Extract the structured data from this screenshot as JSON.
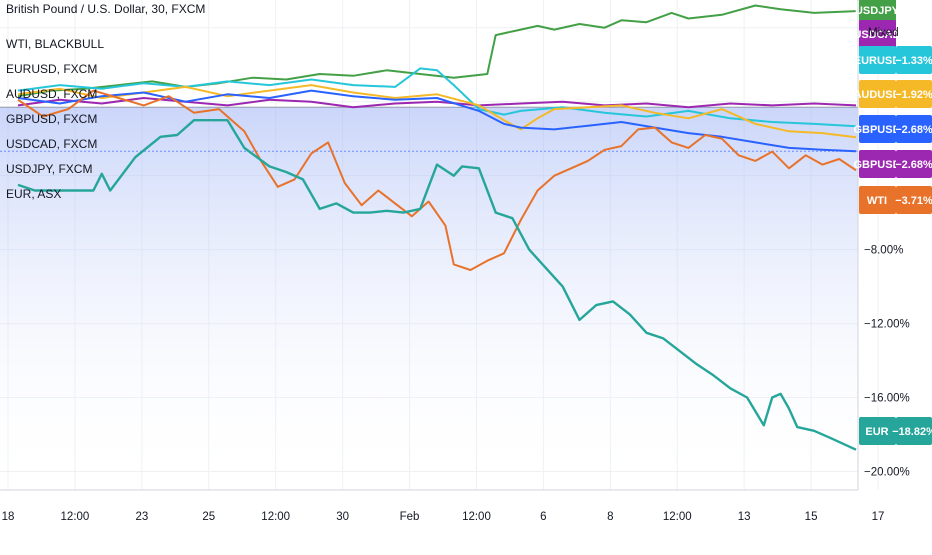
{
  "header": {
    "main_symbol_label": "British Pound / U.S. Dollar, 30, FXCM"
  },
  "legend_rows": [
    "WTI, BLACKBULL",
    "EURUSD, FXCM",
    "AUDUSD, FXCM",
    "GBPUSD, FXCM",
    "USDCAD, FXCM",
    "USDJPY, FXCM",
    "EUR, ASX"
  ],
  "scale_mode_label": "Mixed",
  "colors": {
    "wti": "#e8722a",
    "eurusd": "#26c6da",
    "audusd": "#f5b928",
    "gbpusd": "#2962ff",
    "usdcad": "#9c27b0",
    "usdjpy": "#43a047",
    "eur": "#26a69a",
    "area_top": "#9fb4f5",
    "area_bottom": "#ffffff",
    "grid": "#eef0f3",
    "axis_line": "#d1d4dc"
  },
  "badges": [
    {
      "name": "USDJPY",
      "value": "",
      "color": "#43a047"
    },
    {
      "name": "USDCAD",
      "value": "",
      "color": "#9c27b0"
    },
    {
      "name": "EURUSD",
      "value": "−1.33%",
      "color": "#26c6da"
    },
    {
      "name": "AUDUSD",
      "value": "−1.92%",
      "color": "#f5b928"
    },
    {
      "name": "GBPUSD",
      "value": "−2.68%",
      "color": "#2962ff"
    },
    {
      "name": "GBPUSD",
      "value": "−2.68%",
      "color": "#9c27b0"
    },
    {
      "name": "WTI",
      "value": "−3.71%",
      "color": "#e8722a"
    },
    {
      "name": "EUR",
      "value": "−18.82%",
      "color": "#26a69a"
    }
  ],
  "chart_data": {
    "type": "line",
    "title": "British Pound / U.S. Dollar, 30, FXCM",
    "y_unit": "percent",
    "ylim": [
      -21,
      5.5
    ],
    "y_ticks": [
      {
        "value": -8,
        "label": "−8.00%"
      },
      {
        "value": -12,
        "label": "−12.00%"
      },
      {
        "value": -16,
        "label": "−16.00%"
      },
      {
        "value": -20,
        "label": "−20.00%"
      }
    ],
    "x_ticks": [
      "18",
      "12:00",
      "23",
      "25",
      "12:00",
      "30",
      "Feb",
      "12:00",
      "6",
      "8",
      "12:00",
      "13",
      "15",
      "17"
    ],
    "grid": true,
    "series": [
      {
        "name": "USDJPY",
        "key": "usdjpy",
        "x": [
          0,
          4,
          8,
          12,
          16,
          20,
          24,
          28,
          32,
          36,
          40,
          44,
          48,
          52,
          56,
          57,
          60,
          62,
          64,
          67,
          70,
          72,
          75,
          78,
          80,
          84,
          88,
          91,
          95,
          100
        ],
        "values": [
          0.3,
          0.6,
          0.7,
          0.9,
          1.1,
          0.8,
          1.0,
          1.3,
          1.2,
          1.5,
          1.4,
          1.7,
          1.5,
          1.3,
          1.5,
          3.6,
          3.9,
          4.1,
          3.9,
          4.2,
          4.0,
          4.4,
          4.3,
          4.8,
          4.5,
          4.7,
          5.2,
          5.0,
          4.8,
          4.9
        ]
      },
      {
        "name": "USDCAD",
        "key": "usdcad",
        "x": [
          0,
          5,
          10,
          15,
          20,
          25,
          30,
          35,
          40,
          45,
          50,
          55,
          60,
          65,
          70,
          75,
          80,
          85,
          90,
          95,
          100
        ],
        "values": [
          -0.2,
          0.1,
          -0.1,
          0.2,
          0.0,
          -0.2,
          0.1,
          0.0,
          -0.3,
          -0.1,
          0.0,
          -0.2,
          -0.1,
          0.0,
          -0.2,
          -0.1,
          -0.3,
          -0.1,
          -0.2,
          -0.1,
          -0.2
        ]
      },
      {
        "name": "EURUSD",
        "key": "eurusd",
        "x": [
          0,
          5,
          10,
          15,
          20,
          25,
          30,
          35,
          40,
          45,
          48,
          50,
          52,
          55,
          58,
          60,
          65,
          70,
          75,
          80,
          85,
          90,
          95,
          100
        ],
        "values": [
          0.6,
          0.9,
          0.7,
          1.0,
          0.8,
          1.1,
          0.9,
          1.2,
          0.9,
          0.8,
          1.8,
          1.7,
          0.9,
          -0.4,
          -0.7,
          -0.5,
          -0.3,
          -0.6,
          -0.8,
          -0.5,
          -0.9,
          -1.1,
          -1.2,
          -1.33
        ]
      },
      {
        "name": "AUDUSD",
        "key": "audusd",
        "x": [
          0,
          5,
          10,
          15,
          20,
          25,
          30,
          35,
          40,
          45,
          50,
          55,
          58,
          60,
          62,
          64,
          68,
          72,
          76,
          80,
          84,
          88,
          92,
          96,
          100
        ],
        "values": [
          0.4,
          0.7,
          0.2,
          0.5,
          0.8,
          0.3,
          0.6,
          0.9,
          0.5,
          0.2,
          0.4,
          -0.2,
          -1.0,
          -1.5,
          -0.9,
          -0.4,
          -0.3,
          -0.2,
          -0.6,
          -0.9,
          -0.4,
          -1.2,
          -1.6,
          -1.7,
          -1.92
        ]
      },
      {
        "name": "GBPUSD",
        "key": "gbpusd",
        "x": [
          0,
          5,
          10,
          15,
          20,
          25,
          30,
          35,
          40,
          45,
          50,
          55,
          58,
          60,
          64,
          68,
          72,
          76,
          80,
          84,
          88,
          92,
          96,
          100
        ],
        "values": [
          0.2,
          -0.1,
          0.3,
          0.5,
          0.0,
          0.4,
          0.2,
          0.6,
          0.3,
          0.1,
          0.2,
          -0.5,
          -1.2,
          -1.4,
          -1.5,
          -1.3,
          -1.1,
          -1.4,
          -1.7,
          -1.9,
          -2.2,
          -2.5,
          -2.6,
          -2.68
        ]
      },
      {
        "name": "WTI",
        "key": "wti",
        "x": [
          0,
          3,
          6,
          9,
          12,
          15,
          18,
          21,
          24,
          27,
          29,
          31,
          33,
          35,
          37,
          39,
          41,
          43,
          45,
          47,
          49,
          51,
          52,
          54,
          56,
          58,
          60,
          62,
          64,
          66,
          68,
          70,
          72,
          74,
          76,
          78,
          80,
          82,
          84,
          86,
          88,
          90,
          92,
          94,
          96,
          98,
          100
        ],
        "values": [
          0.1,
          -0.8,
          -0.4,
          0.6,
          0.2,
          -0.2,
          0.3,
          -0.6,
          -0.4,
          -1.6,
          -3.2,
          -4.6,
          -4.2,
          -2.8,
          -2.2,
          -4.4,
          -5.6,
          -4.8,
          -5.5,
          -6.2,
          -5.4,
          -6.7,
          -8.8,
          -9.1,
          -8.6,
          -8.2,
          -6.4,
          -4.8,
          -4.0,
          -3.6,
          -3.2,
          -2.6,
          -2.4,
          -1.5,
          -1.4,
          -2.2,
          -2.5,
          -1.8,
          -2.0,
          -2.9,
          -3.2,
          -2.7,
          -3.6,
          -2.9,
          -3.4,
          -3.1,
          -3.71
        ]
      },
      {
        "name": "EUR",
        "key": "eur",
        "x": [
          0,
          2,
          6,
          9,
          10,
          11,
          14,
          17,
          19,
          21,
          23,
          25,
          27,
          30,
          32,
          34,
          36,
          38,
          40,
          42,
          44,
          46,
          48,
          50,
          52,
          53,
          55,
          57,
          59,
          61,
          63,
          65,
          67,
          69,
          71,
          73,
          75,
          77,
          79,
          81,
          83,
          85,
          87,
          89,
          90,
          91,
          92,
          93,
          95,
          97,
          100
        ],
        "values": [
          -4.5,
          -4.8,
          -4.8,
          -4.8,
          -3.9,
          -4.8,
          -3.0,
          -1.9,
          -1.8,
          -1.0,
          -1.0,
          -1.0,
          -2.5,
          -3.5,
          -3.8,
          -4.2,
          -5.8,
          -5.5,
          -6.0,
          -6.0,
          -5.9,
          -6.0,
          -5.8,
          -3.4,
          -4.0,
          -3.5,
          -3.6,
          -6.0,
          -6.3,
          -8.0,
          -9.0,
          -10.0,
          -11.8,
          -11.0,
          -10.8,
          -11.5,
          -12.5,
          -12.8,
          -13.5,
          -14.2,
          -14.8,
          -15.5,
          -16.0,
          -17.5,
          -16.0,
          -15.8,
          -16.6,
          -17.6,
          -17.8,
          -18.2,
          -18.82
        ]
      }
    ]
  }
}
